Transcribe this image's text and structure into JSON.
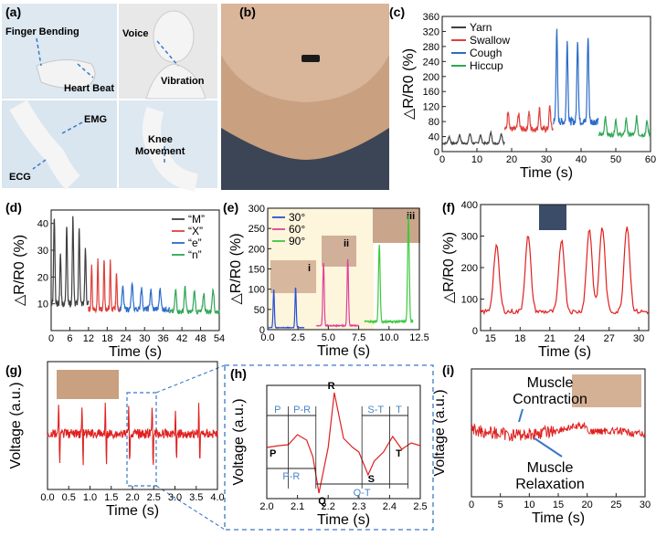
{
  "panel_labels": [
    "(a)",
    "(b)",
    "(c)",
    "(d)",
    "(e)",
    "(f)",
    "(g)",
    "(h)",
    "(i)"
  ],
  "panel_a": {
    "annotations": [
      "Finger Bending",
      "Heart Beat",
      "Voice",
      "Vibration",
      "EMG",
      "ECG",
      "Knee Movement"
    ]
  },
  "colors": {
    "yarn": "#404040",
    "swallow": "#e0403c",
    "cough": "#2a6bc9",
    "hiccup": "#2ea655",
    "bg_e": "#fdf5dc",
    "red": "#e02020",
    "blue_dash": "#3a78c8"
  },
  "chart_data": [
    {
      "id": "c",
      "type": "line",
      "xlabel": "Time (s)",
      "ylabel": "△R/R0 (%)",
      "xlim": [
        0,
        60
      ],
      "ylim": [
        0,
        360
      ],
      "xticks": [
        0,
        10,
        20,
        30,
        40,
        50,
        60
      ],
      "yticks": [
        0,
        40,
        80,
        120,
        160,
        200,
        240,
        280,
        320,
        360
      ],
      "series": [
        {
          "name": "Yarn",
          "range": [
            0,
            18
          ],
          "base": 22,
          "peaks": [
            [
              2,
              40
            ],
            [
              5,
              45
            ],
            [
              8,
              48
            ],
            [
              11,
              44
            ],
            [
              14,
              50
            ],
            [
              17,
              48
            ]
          ]
        },
        {
          "name": "Swallow",
          "range": [
            18,
            32
          ],
          "base": 60,
          "peaks": [
            [
              19,
              110
            ],
            [
              22,
              100
            ],
            [
              25,
              105
            ],
            [
              28,
              115
            ],
            [
              31,
              120
            ]
          ]
        },
        {
          "name": "Cough",
          "range": [
            32,
            45
          ],
          "base": 80,
          "peaks": [
            [
              33,
              320
            ],
            [
              36,
              295
            ],
            [
              39,
              300
            ],
            [
              42,
              305
            ]
          ]
        },
        {
          "name": "Hiccup",
          "range": [
            45,
            60
          ],
          "base": 45,
          "peaks": [
            [
              47,
              95
            ],
            [
              50,
              85
            ],
            [
              53,
              88
            ],
            [
              56,
              92
            ],
            [
              59,
              80
            ]
          ]
        }
      ]
    },
    {
      "id": "d",
      "type": "line",
      "xlabel": "Time (s)",
      "ylabel": "△R/R0 (%)",
      "xlim": [
        0,
        54
      ],
      "ylim": [
        0,
        45
      ],
      "xticks": [
        0,
        6,
        12,
        18,
        24,
        30,
        36,
        42,
        48,
        54
      ],
      "yticks": [
        10,
        20,
        30,
        40
      ],
      "series": [
        {
          "name": "“M”",
          "range": [
            0,
            12
          ],
          "base": 10,
          "peaks": [
            [
              1,
              42
            ],
            [
              3,
              28
            ],
            [
              5,
              40
            ],
            [
              7,
              43
            ],
            [
              9,
              38
            ],
            [
              11,
              30
            ]
          ]
        },
        {
          "name": "“X”",
          "range": [
            12,
            22
          ],
          "base": 8,
          "peaks": [
            [
              13,
              25
            ],
            [
              15,
              26
            ],
            [
              17,
              27
            ],
            [
              19,
              26
            ],
            [
              21,
              22
            ]
          ]
        },
        {
          "name": "“e”",
          "range": [
            22,
            38
          ],
          "base": 8,
          "peaks": [
            [
              23,
              16
            ],
            [
              26,
              17
            ],
            [
              29,
              16
            ],
            [
              32,
              15
            ],
            [
              35,
              16
            ]
          ]
        },
        {
          "name": "“n”",
          "range": [
            38,
            54
          ],
          "base": 7,
          "peaks": [
            [
              40,
              15
            ],
            [
              43,
              16
            ],
            [
              46,
              15
            ],
            [
              49,
              14
            ],
            [
              52,
              16
            ]
          ]
        }
      ]
    },
    {
      "id": "e",
      "type": "line",
      "xlabel": "Time (s)",
      "ylabel": "△R/R0 (%)",
      "xlim": [
        0,
        12.5
      ],
      "ylim": [
        0,
        300
      ],
      "xticks": [
        0.0,
        2.5,
        5.0,
        7.5,
        10.0,
        12.5
      ],
      "yticks": [
        0,
        50,
        100,
        150,
        200,
        250,
        300
      ],
      "series": [
        {
          "name": "30°",
          "range": [
            0,
            3
          ],
          "base": 5,
          "peaks": [
            [
              0.5,
              100
            ],
            [
              2.3,
              105
            ]
          ]
        },
        {
          "name": "60°",
          "range": [
            4,
            7.5
          ],
          "base": 10,
          "peaks": [
            [
              4.6,
              165
            ],
            [
              6.6,
              175
            ]
          ]
        },
        {
          "name": "90°",
          "range": [
            8,
            12
          ],
          "base": 20,
          "peaks": [
            [
              9.2,
              210
            ],
            [
              11.6,
              285
            ]
          ]
        }
      ],
      "insets": [
        "i",
        "ii",
        "iii"
      ]
    },
    {
      "id": "f",
      "type": "line",
      "xlabel": "Time (s)",
      "ylabel": "△R/R0 (%)",
      "xlim": [
        14,
        31
      ],
      "ylim": [
        0,
        400
      ],
      "xticks": [
        15,
        18,
        21,
        24,
        27,
        30
      ],
      "yticks": [
        0,
        100,
        200,
        300,
        400
      ],
      "series": [
        {
          "name": "knee",
          "range": [
            14,
            31
          ],
          "base": 60,
          "peaks": [
            [
              15.6,
              270
            ],
            [
              18.8,
              300
            ],
            [
              22.2,
              290
            ],
            [
              25,
              325
            ],
            [
              26.3,
              330
            ],
            [
              28.8,
              335
            ]
          ]
        }
      ]
    },
    {
      "id": "g",
      "type": "line",
      "xlabel": "Time (s)",
      "ylabel": "Voltage (a.u.)",
      "xlim": [
        0,
        4.0
      ],
      "xticks": [
        0.0,
        0.5,
        1.0,
        1.5,
        2.0,
        2.5,
        3.0,
        3.5,
        4.0
      ],
      "series": [
        {
          "name": "ECG"
        }
      ]
    },
    {
      "id": "h",
      "type": "line",
      "xlabel": "Time (s)",
      "ylabel": "Voltage (a.u.)",
      "xlim": [
        2.0,
        2.5
      ],
      "xticks": [
        2.0,
        2.1,
        2.2,
        2.3,
        2.4,
        2.5
      ],
      "annotations": [
        "P",
        "Q",
        "R",
        "S",
        "T",
        "P",
        "P-R",
        "S-T",
        "T",
        "P-R",
        "Q-T"
      ]
    },
    {
      "id": "i",
      "type": "line",
      "xlabel": "Time (s)",
      "ylabel": "Voltage (a.u.)",
      "xlim": [
        0,
        30
      ],
      "xticks": [
        0,
        5,
        10,
        15,
        20,
        25,
        30
      ],
      "annotations": [
        "Muscle Contraction",
        "Muscle Relaxation"
      ]
    }
  ]
}
